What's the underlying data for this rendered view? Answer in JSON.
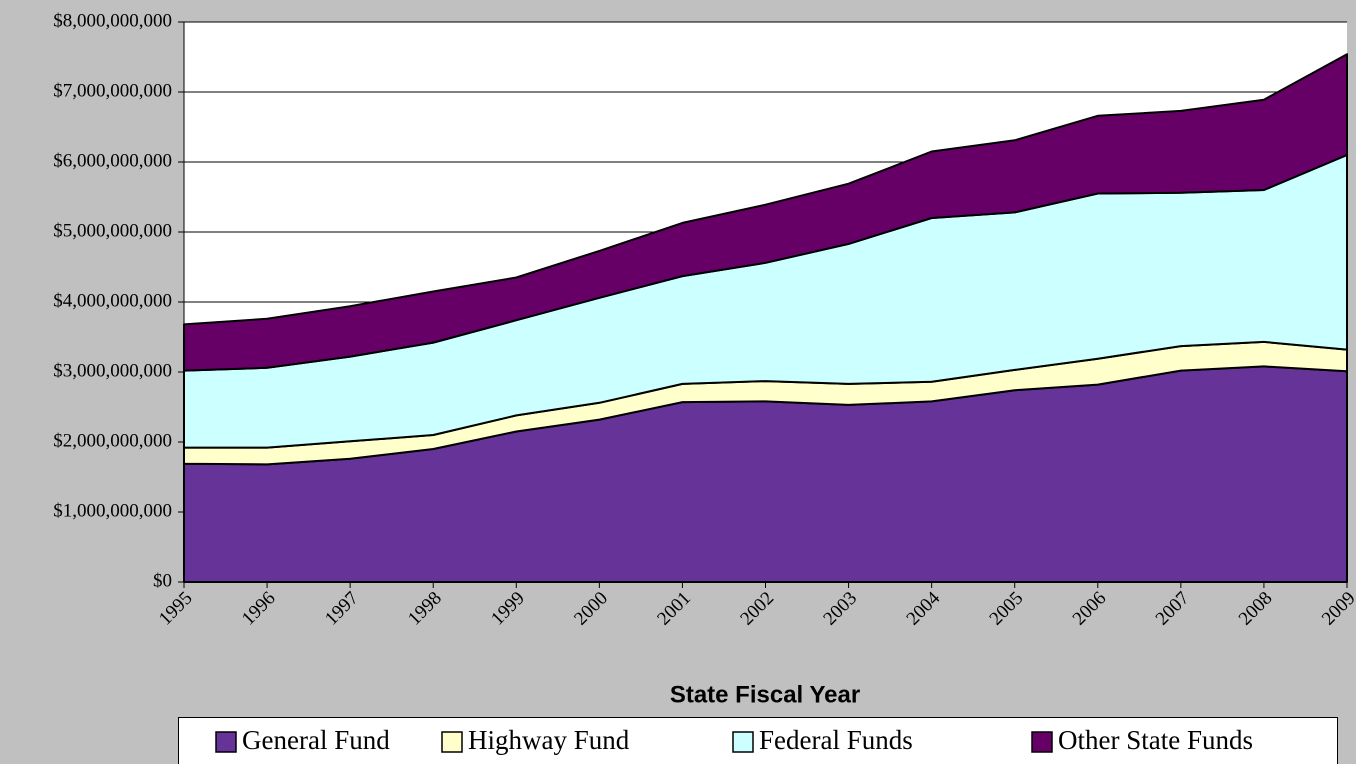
{
  "chart_data": {
    "type": "area",
    "stacked": true,
    "x_label": "State Fiscal Year",
    "categories": [
      "1995",
      "1996",
      "1997",
      "1998",
      "1999",
      "2000",
      "2001",
      "2002",
      "2003",
      "2004",
      "2005",
      "2006",
      "2007",
      "2008",
      "2009"
    ],
    "series": [
      {
        "name": "General Fund",
        "color": "#663399",
        "values": [
          1690000000,
          1680000000,
          1760000000,
          1900000000,
          2150000000,
          2320000000,
          2570000000,
          2580000000,
          2530000000,
          2580000000,
          2740000000,
          2820000000,
          3020000000,
          3080000000,
          3010000000
        ]
      },
      {
        "name": "Highway Fund",
        "color": "#ffffcc",
        "values": [
          230000000,
          240000000,
          250000000,
          200000000,
          230000000,
          240000000,
          260000000,
          290000000,
          300000000,
          280000000,
          290000000,
          370000000,
          350000000,
          350000000,
          310000000
        ]
      },
      {
        "name": "Federal Funds",
        "color": "#ccffff",
        "values": [
          1100000000,
          1140000000,
          1210000000,
          1320000000,
          1360000000,
          1500000000,
          1540000000,
          1690000000,
          2000000000,
          2340000000,
          2250000000,
          2360000000,
          2190000000,
          2170000000,
          2780000000
        ]
      },
      {
        "name": "Other State Funds",
        "color": "#660066",
        "values": [
          660000000,
          700000000,
          720000000,
          730000000,
          610000000,
          670000000,
          760000000,
          830000000,
          860000000,
          950000000,
          1030000000,
          1110000000,
          1170000000,
          1290000000,
          1440000000
        ]
      }
    ],
    "ylim": [
      0,
      8000000000
    ],
    "yticks": [
      {
        "value": 0,
        "label": "$0"
      },
      {
        "value": 1000000000,
        "label": "$1,000,000,000"
      },
      {
        "value": 2000000000,
        "label": "$2,000,000,000"
      },
      {
        "value": 3000000000,
        "label": "$3,000,000,000"
      },
      {
        "value": 4000000000,
        "label": "$4,000,000,000"
      },
      {
        "value": 5000000000,
        "label": "$5,000,000,000"
      },
      {
        "value": 6000000000,
        "label": "$6,000,000,000"
      },
      {
        "value": 7000000000,
        "label": "$7,000,000,000"
      },
      {
        "value": 8000000000,
        "label": "$8,000,000,000"
      }
    ],
    "grid": true,
    "legend": "bottom"
  }
}
